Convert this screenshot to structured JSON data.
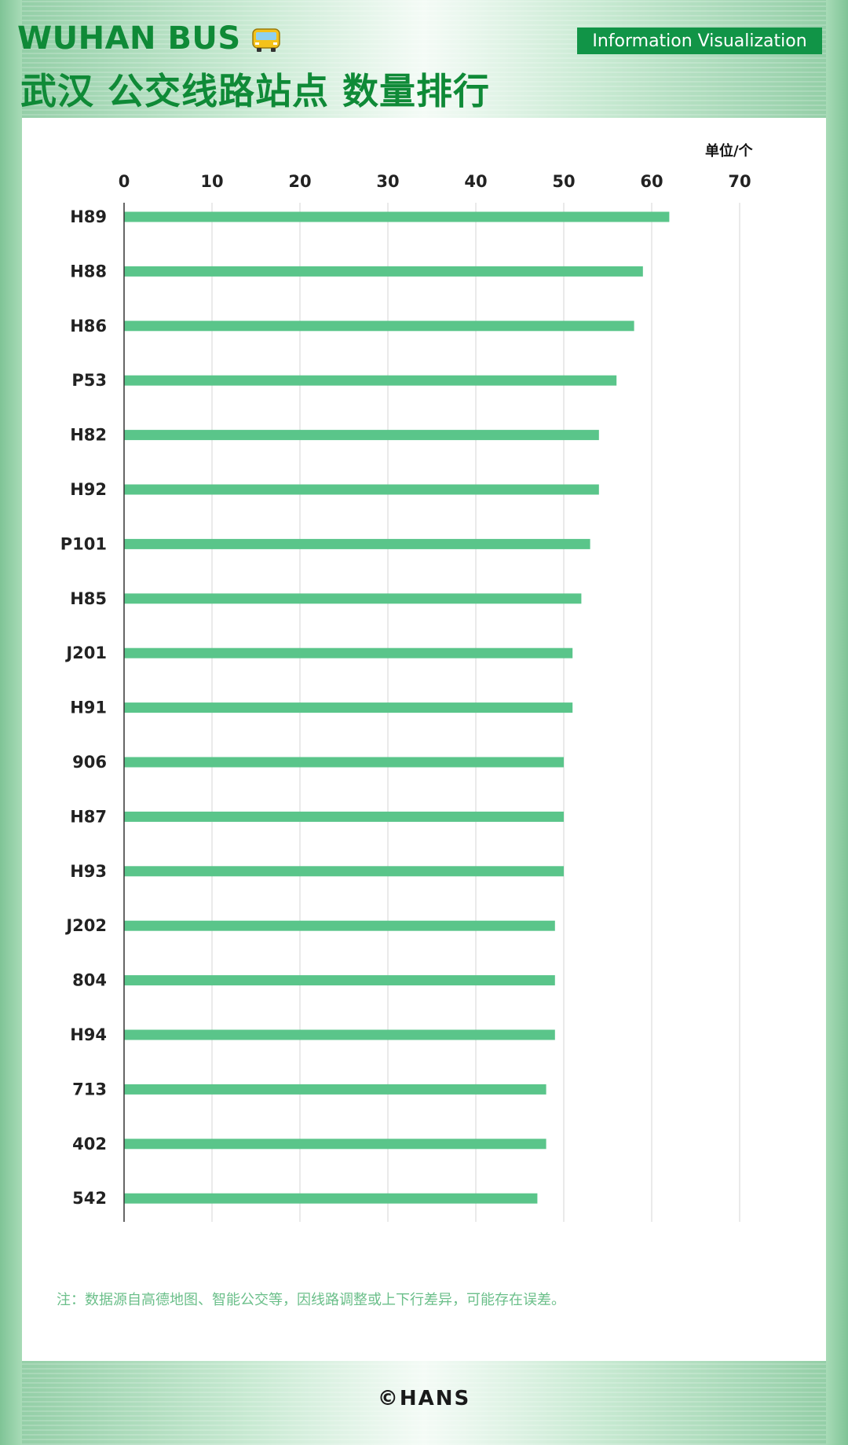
{
  "header": {
    "brand": "WUHAN BUS",
    "bus_icon": "bus-icon",
    "title": "武汉 公交线路站点 数量排行",
    "tag": "Information Visualization"
  },
  "footer": {
    "note": "注：数据源自高德地图、智能公交等，因线路调整或上下行差异，可能存在误差。",
    "copyright": "©HANS"
  },
  "colors": {
    "brand_green": "#0f8a37",
    "tag_green": "#119447",
    "bar_green": "#5ac58a",
    "note_green": "#6bbf8a"
  },
  "chart_data": {
    "type": "bar",
    "orientation": "horizontal",
    "unit_label": "单位/个",
    "categories": [
      "H89",
      "H88",
      "H86",
      "P53",
      "H82",
      "H92",
      "P101",
      "H85",
      "J201",
      "H91",
      "906",
      "H87",
      "H93",
      "J202",
      "804",
      "H94",
      "713",
      "402",
      "542"
    ],
    "values": [
      62,
      59,
      58,
      56,
      54,
      54,
      53,
      52,
      51,
      51,
      50,
      50,
      50,
      49,
      49,
      49,
      48,
      48,
      47
    ],
    "xlim": [
      0,
      70
    ],
    "xticks": [
      0,
      10,
      20,
      30,
      40,
      50,
      60,
      70
    ],
    "xaxis_position": "top",
    "grid": true,
    "legend": "none"
  }
}
